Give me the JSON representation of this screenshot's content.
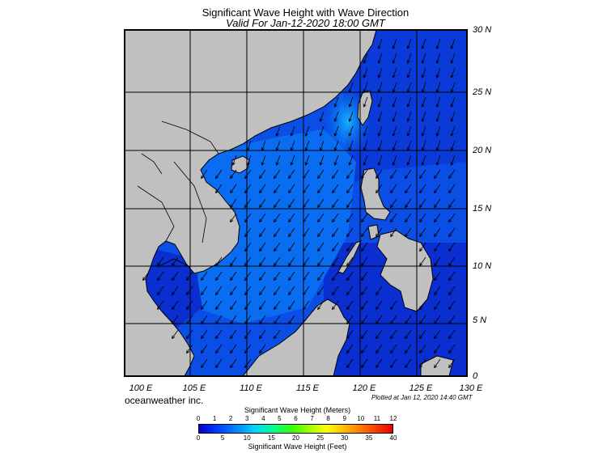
{
  "title": "Significant Wave Height with Wave Direction",
  "subtitle": "Valid For Jan-12-2020 18:00 GMT",
  "lat_labels": [
    "30 N",
    "25 N",
    "20 N",
    "15 N",
    "10 N",
    "5 N",
    "0"
  ],
  "lon_labels": [
    "100 E",
    "105 E",
    "110 E",
    "115 E",
    "120 E",
    "125 E",
    "130 E"
  ],
  "credit": "oceanweather inc.",
  "plotted": "Plotted at Jan 12, 2020 14:40 GMT",
  "colorbar": {
    "title_meters": "Significant Wave Height (Meters)",
    "title_feet": "Significant Wave Height (Feet)",
    "meters_ticks": [
      "0",
      "1",
      "2",
      "3",
      "4",
      "5",
      "6",
      "7",
      "8",
      "9",
      "10",
      "11",
      "12"
    ],
    "feet_ticks": [
      "0",
      "5",
      "10",
      "15",
      "20",
      "25",
      "30",
      "35",
      "40"
    ]
  },
  "colors": {
    "land": "#c0c0c0",
    "sea_dark": "#0a14c8",
    "sea_mid": "#0a4ee6",
    "sea_light": "#0a78f5",
    "high_wave": "#14c8ff"
  },
  "arrow_direction": "toward-southwest"
}
